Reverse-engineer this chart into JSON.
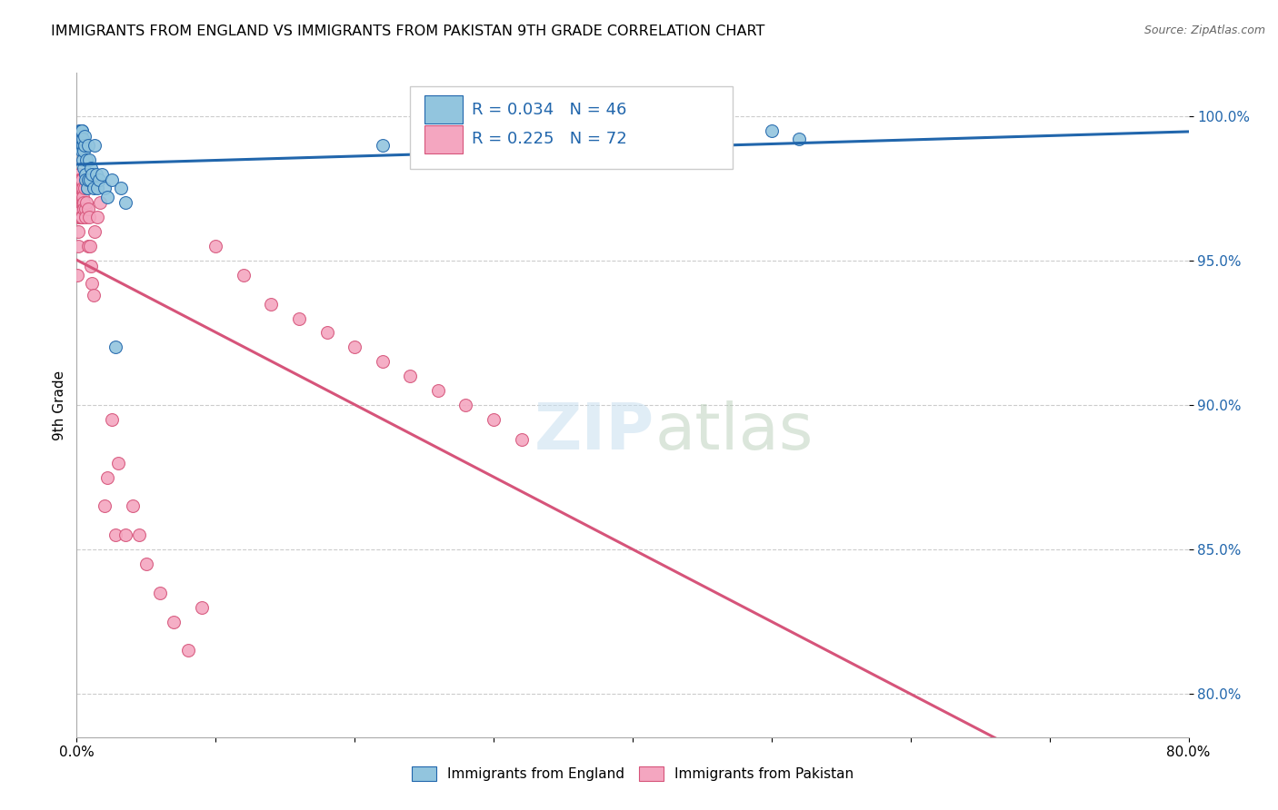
{
  "title": "IMMIGRANTS FROM ENGLAND VS IMMIGRANTS FROM PAKISTAN 9TH GRADE CORRELATION CHART",
  "source": "Source: ZipAtlas.com",
  "ylabel": "9th Grade",
  "yticks": [
    80.0,
    85.0,
    90.0,
    95.0,
    100.0
  ],
  "xlim": [
    0.0,
    80.0
  ],
  "ylim": [
    78.5,
    101.5
  ],
  "legend_england": "Immigrants from England",
  "legend_pakistan": "Immigrants from Pakistan",
  "R_england": 0.034,
  "N_england": 46,
  "R_pakistan": 0.225,
  "N_pakistan": 72,
  "color_england": "#92c5de",
  "color_pakistan": "#f4a6c0",
  "trendline_england_color": "#2166ac",
  "trendline_pakistan_color": "#d6547a",
  "watermark_zip": "ZIP",
  "watermark_atlas": "atlas",
  "england_x": [
    0.15,
    0.2,
    0.25,
    0.25,
    0.3,
    0.3,
    0.35,
    0.35,
    0.35,
    0.4,
    0.4,
    0.4,
    0.4,
    0.45,
    0.45,
    0.45,
    0.5,
    0.5,
    0.55,
    0.55,
    0.6,
    0.65,
    0.7,
    0.75,
    0.8,
    0.85,
    0.9,
    0.95,
    1.0,
    1.1,
    1.2,
    1.3,
    1.4,
    1.5,
    1.6,
    1.8,
    2.0,
    2.2,
    2.5,
    2.8,
    3.2,
    3.5,
    22.0,
    28.0,
    50.0,
    52.0
  ],
  "england_y": [
    99.2,
    99.5,
    99.0,
    99.3,
    99.2,
    99.5,
    99.0,
    99.2,
    99.5,
    99.0,
    99.2,
    98.8,
    99.5,
    98.5,
    99.0,
    99.2,
    98.2,
    98.8,
    99.0,
    99.3,
    98.0,
    97.8,
    98.5,
    97.5,
    97.8,
    99.0,
    98.5,
    97.8,
    98.2,
    98.0,
    97.5,
    99.0,
    98.0,
    97.5,
    97.8,
    98.0,
    97.5,
    97.2,
    97.8,
    92.0,
    97.5,
    97.0,
    99.0,
    98.5,
    99.5,
    99.2
  ],
  "pakistan_x": [
    0.05,
    0.08,
    0.1,
    0.12,
    0.12,
    0.12,
    0.15,
    0.15,
    0.15,
    0.18,
    0.2,
    0.2,
    0.22,
    0.22,
    0.25,
    0.25,
    0.25,
    0.25,
    0.28,
    0.3,
    0.3,
    0.32,
    0.35,
    0.35,
    0.38,
    0.4,
    0.4,
    0.42,
    0.45,
    0.45,
    0.5,
    0.5,
    0.55,
    0.6,
    0.65,
    0.7,
    0.75,
    0.8,
    0.85,
    0.9,
    0.95,
    1.0,
    1.1,
    1.2,
    1.3,
    1.5,
    1.7,
    2.0,
    2.2,
    2.5,
    2.8,
    3.0,
    3.5,
    4.0,
    4.5,
    5.0,
    6.0,
    7.0,
    8.0,
    9.0,
    10.0,
    12.0,
    14.0,
    16.0,
    18.0,
    20.0,
    22.0,
    24.0,
    26.0,
    28.0,
    30.0,
    32.0
  ],
  "pakistan_y": [
    94.5,
    95.5,
    96.5,
    97.0,
    96.0,
    97.5,
    97.5,
    97.0,
    98.0,
    97.5,
    97.0,
    97.8,
    96.5,
    97.2,
    97.5,
    97.0,
    97.8,
    96.8,
    96.5,
    97.5,
    97.0,
    97.8,
    96.5,
    97.0,
    97.5,
    97.8,
    96.5,
    97.5,
    97.0,
    97.2,
    97.0,
    96.8,
    97.5,
    96.8,
    96.5,
    97.0,
    97.5,
    96.8,
    95.5,
    96.5,
    95.5,
    94.8,
    94.2,
    93.8,
    96.0,
    96.5,
    97.0,
    86.5,
    87.5,
    89.5,
    85.5,
    88.0,
    85.5,
    86.5,
    85.5,
    84.5,
    83.5,
    82.5,
    81.5,
    83.0,
    95.5,
    94.5,
    93.5,
    93.0,
    92.5,
    92.0,
    91.5,
    91.0,
    90.5,
    90.0,
    89.5,
    88.8
  ]
}
